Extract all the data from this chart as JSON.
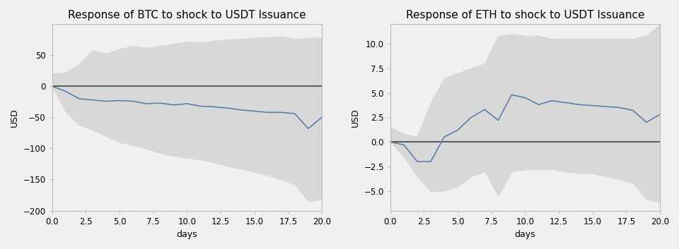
{
  "btc_title": "Response of BTC to shock to USDT Issuance",
  "eth_title": "Response of ETH to shock to USDT Issuance",
  "xlabel": "days",
  "ylabel": "USD",
  "days": [
    0,
    1,
    2,
    3,
    4,
    5,
    6,
    7,
    8,
    9,
    10,
    11,
    12,
    13,
    14,
    15,
    16,
    17,
    18,
    19,
    20
  ],
  "btc_mean": [
    0,
    -8,
    -20,
    -22,
    -24,
    -23,
    -24,
    -28,
    -27,
    -30,
    -28,
    -32,
    -33,
    -35,
    -38,
    -40,
    -42,
    -42,
    -44,
    -68,
    -50
  ],
  "btc_upper": [
    20,
    22,
    35,
    58,
    52,
    60,
    65,
    62,
    65,
    68,
    72,
    70,
    73,
    75,
    76,
    78,
    79,
    80,
    76,
    78,
    78
  ],
  "btc_lower": [
    0,
    -40,
    -62,
    -70,
    -80,
    -90,
    -95,
    -100,
    -108,
    -112,
    -115,
    -118,
    -122,
    -128,
    -133,
    -138,
    -143,
    -150,
    -158,
    -185,
    -182
  ],
  "btc_ylim": [
    -200,
    100
  ],
  "btc_yticks": [
    50,
    0,
    -50,
    -100,
    -150,
    -200
  ],
  "eth_mean": [
    0,
    -0.3,
    -2.0,
    -2.0,
    0.5,
    1.2,
    2.5,
    3.3,
    2.2,
    4.8,
    4.5,
    3.8,
    4.2,
    4.0,
    3.8,
    3.7,
    3.6,
    3.5,
    3.2,
    2.0,
    2.8
  ],
  "eth_upper": [
    1.5,
    0.8,
    0.5,
    4.0,
    6.5,
    7.0,
    7.5,
    8.0,
    10.8,
    11.0,
    10.8,
    10.8,
    10.5,
    10.5,
    10.5,
    10.5,
    10.5,
    10.5,
    10.5,
    10.8,
    12.0
  ],
  "eth_lower": [
    0,
    -1.5,
    -3.5,
    -5.0,
    -5.0,
    -4.5,
    -3.5,
    -3.0,
    -5.5,
    -3.0,
    -2.8,
    -2.8,
    -2.8,
    -3.0,
    -3.2,
    -3.2,
    -3.5,
    -3.8,
    -4.2,
    -5.8,
    -6.2
  ],
  "eth_ylim": [
    -7,
    12
  ],
  "eth_yticks": [
    10.0,
    7.5,
    5.0,
    2.5,
    0.0,
    -2.5,
    -5.0
  ],
  "line_color": "#5b7faa",
  "fill_color": "#d8d8d8",
  "zero_line_color": "#444444",
  "background_color": "#f0f0f0",
  "title_fontsize": 11,
  "label_fontsize": 9,
  "tick_fontsize": 8.5
}
